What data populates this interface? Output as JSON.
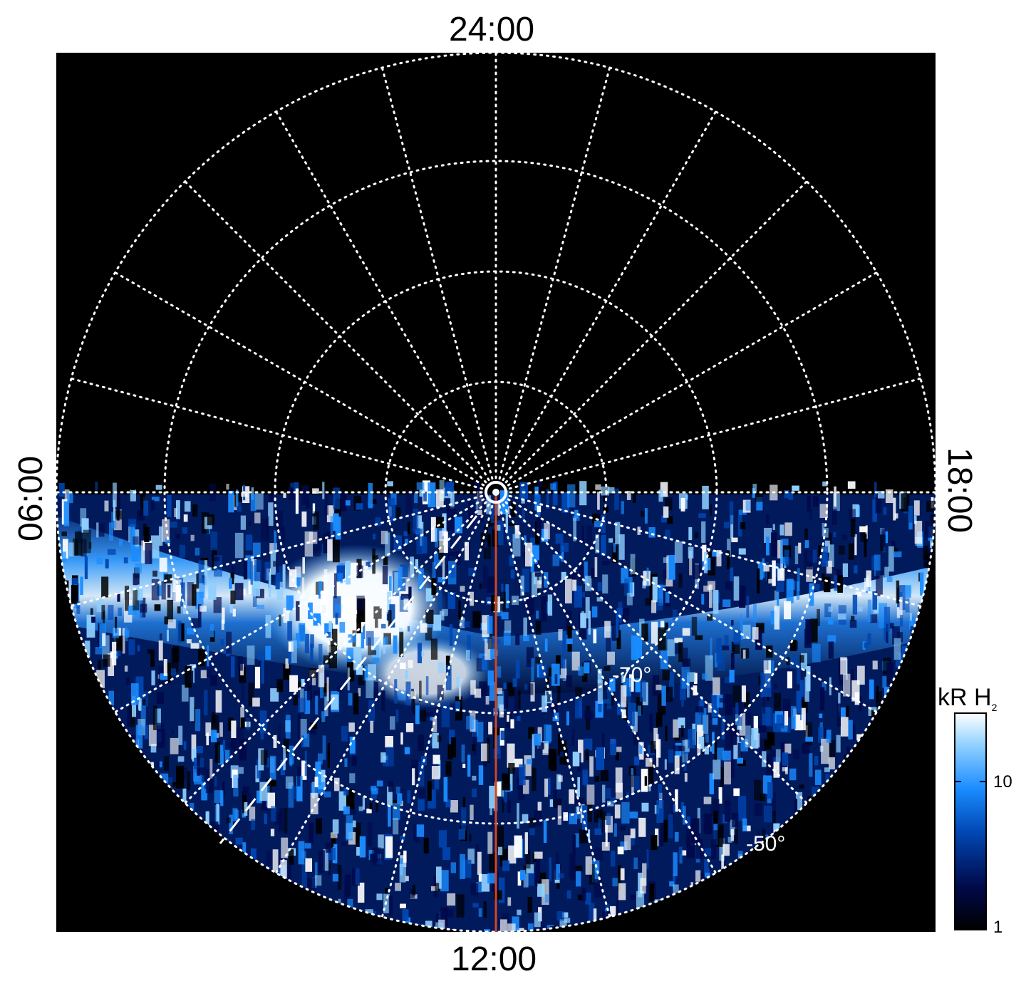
{
  "local_time_labels": {
    "top": "24:00",
    "bottom": "12:00",
    "left": "06:00",
    "right": "18:00"
  },
  "latitude_labels": [
    "-70°",
    "-50°"
  ],
  "colorbar": {
    "title_main": "kR H",
    "title_sub": "2",
    "ticks": [
      "10",
      "1"
    ],
    "scale": "log",
    "range": [
      1,
      30
    ],
    "colors": [
      "#000000",
      "#000a4a",
      "#0047b3",
      "#1a8cff",
      "#8fd0ff",
      "#ffffff"
    ]
  },
  "colors": {
    "background": "#000000",
    "grid": "#ffffff",
    "meridian_line": "#d2461e"
  }
}
